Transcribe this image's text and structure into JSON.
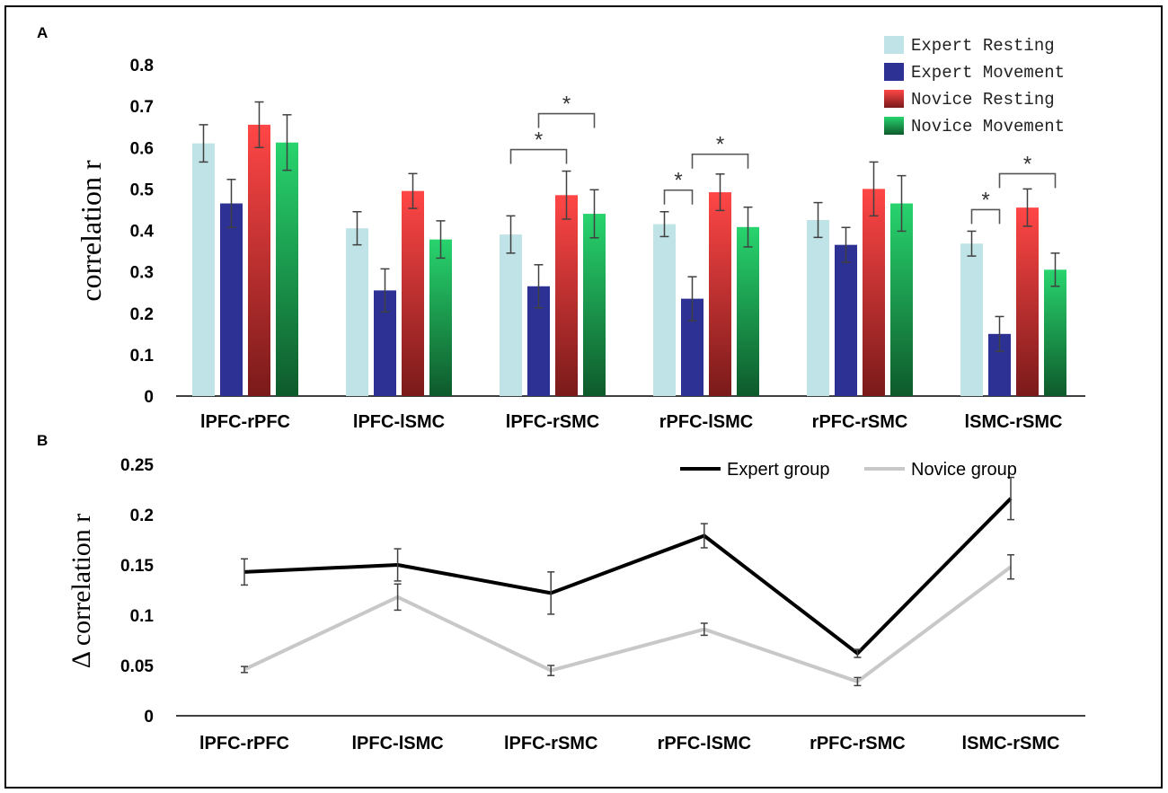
{
  "figure": {
    "panel_a_label": "A",
    "panel_b_label": "B"
  },
  "colors": {
    "expert_resting": "#bfe3e6",
    "expert_movement": "#2c3193",
    "novice_resting_top": "#ff4646",
    "novice_resting_bottom": "#7a1a1a",
    "novice_movement_top": "#28d46e",
    "novice_movement_bottom": "#0e5a2b",
    "error_bar": "#404040",
    "expert_line": "#000000",
    "novice_line": "#c8c8c8",
    "bracket": "#555555"
  },
  "chart_data": [
    {
      "id": "panel-a",
      "type": "bar",
      "title": "",
      "xlabel": "",
      "ylabel": "correlation r",
      "ylim": [
        0,
        0.8
      ],
      "yticks": [
        "0",
        "0.1",
        "0.2",
        "0.3",
        "0.4",
        "0.5",
        "0.6",
        "0.7",
        "0.8"
      ],
      "categories": [
        "lPFC-rPFC",
        "lPFC-lSMC",
        "lPFC-rSMC",
        "rPFC-lSMC",
        "rPFC-rSMC",
        "lSMC-rSMC"
      ],
      "legend_position": "top-right",
      "series": [
        {
          "name": "Expert Resting",
          "values": [
            0.61,
            0.405,
            0.39,
            0.415,
            0.425,
            0.368
          ],
          "errors": [
            0.045,
            0.04,
            0.045,
            0.03,
            0.042,
            0.03
          ]
        },
        {
          "name": "Expert Movement",
          "values": [
            0.465,
            0.255,
            0.265,
            0.235,
            0.365,
            0.15
          ],
          "errors": [
            0.058,
            0.052,
            0.052,
            0.053,
            0.042,
            0.042
          ]
        },
        {
          "name": "Novice Resting",
          "values": [
            0.655,
            0.495,
            0.485,
            0.492,
            0.5,
            0.455
          ],
          "errors": [
            0.055,
            0.042,
            0.058,
            0.044,
            0.065,
            0.045
          ]
        },
        {
          "name": "Novice Movement",
          "values": [
            0.612,
            0.378,
            0.44,
            0.408,
            0.465,
            0.305
          ],
          "errors": [
            0.067,
            0.045,
            0.058,
            0.048,
            0.067,
            0.04
          ]
        }
      ],
      "significance": [
        {
          "category": 2,
          "from_series": 0,
          "to_series": 2,
          "label": "*"
        },
        {
          "category": 2,
          "from_series": 1,
          "to_series": 3,
          "label": "*"
        },
        {
          "category": 3,
          "from_series": 0,
          "to_series": 1,
          "label": "*"
        },
        {
          "category": 3,
          "from_series": 1,
          "to_series": 3,
          "label": "*"
        },
        {
          "category": 5,
          "from_series": 0,
          "to_series": 1,
          "label": "*"
        },
        {
          "category": 5,
          "from_series": 1,
          "to_series": 3,
          "label": "*"
        }
      ]
    },
    {
      "id": "panel-b",
      "type": "line",
      "title": "",
      "xlabel": "",
      "ylabel": "Δ correlation r",
      "ylim": [
        0,
        0.25
      ],
      "yticks": [
        "0",
        "0.05",
        "0.1",
        "0.15",
        "0.2",
        "0.25"
      ],
      "categories": [
        "lPFC-rPFC",
        "lPFC-lSMC",
        "lPFC-rSMC",
        "rPFC-lSMC",
        "rPFC-rSMC",
        "lSMC-rSMC"
      ],
      "legend_position": "top-right",
      "series": [
        {
          "name": "Expert group",
          "values": [
            0.143,
            0.15,
            0.122,
            0.179,
            0.062,
            0.216
          ],
          "errors": [
            0.013,
            0.016,
            0.021,
            0.012,
            0.004,
            0.021
          ]
        },
        {
          "name": "Novice group",
          "values": [
            0.046,
            0.118,
            0.045,
            0.086,
            0.034,
            0.148
          ],
          "errors": [
            0.003,
            0.013,
            0.005,
            0.006,
            0.004,
            0.012
          ]
        }
      ]
    }
  ]
}
